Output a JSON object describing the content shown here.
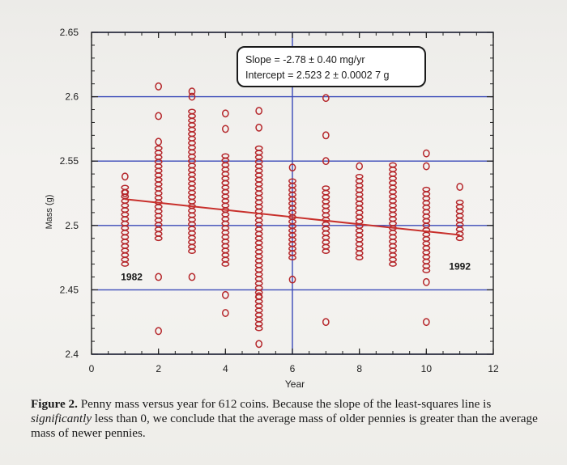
{
  "chart_data": {
    "type": "scatter",
    "xlabel": "Year",
    "ylabel": "Mass (g)",
    "xlim": [
      0,
      12
    ],
    "ylim": [
      2.4,
      2.65
    ],
    "xticks": [
      0,
      2,
      4,
      6,
      8,
      10,
      12
    ],
    "yticks": [
      2.4,
      2.45,
      2.5,
      2.55,
      2.6,
      2.65
    ],
    "xtick_labels": [
      "0",
      "2",
      "4",
      "6",
      "8",
      "10",
      "12"
    ],
    "ytick_labels": [
      "2.4",
      "2.45",
      "2.5",
      "2.55",
      "2.6",
      "2.65"
    ],
    "grid": true,
    "annotation": {
      "line1": "Slope = -2.78 ± 0.40 mg/yr",
      "line2": "Intercept = 2.523 2 ± 0.0002 7 g"
    },
    "labels": [
      {
        "text": "1982",
        "x": 1.2,
        "y": 2.4575
      },
      {
        "text": "1992",
        "x": 11.0,
        "y": 2.4655
      }
    ],
    "fit_line": {
      "slope": -0.00278,
      "intercept": 2.5232
    },
    "series": [
      {
        "x": 1,
        "y_min": 2.47,
        "y_max": 2.53,
        "outliers": [
          2.525,
          2.538
        ]
      },
      {
        "x": 2,
        "y_min": 2.49,
        "y_max": 2.56,
        "outliers": [
          2.418,
          2.46,
          2.565,
          2.585,
          2.608
        ]
      },
      {
        "x": 3,
        "y_min": 2.48,
        "y_max": 2.59,
        "outliers": [
          2.46,
          2.6,
          2.604
        ]
      },
      {
        "x": 4,
        "y_min": 2.47,
        "y_max": 2.555,
        "outliers": [
          2.432,
          2.446,
          2.575,
          2.587
        ]
      },
      {
        "x": 5,
        "y_min": 2.42,
        "y_max": 2.56,
        "outliers": [
          2.408,
          2.445,
          2.576,
          2.589
        ]
      },
      {
        "x": 6,
        "y_min": 2.475,
        "y_max": 2.535,
        "outliers": [
          2.458,
          2.545
        ]
      },
      {
        "x": 7,
        "y_min": 2.48,
        "y_max": 2.53,
        "outliers": [
          2.425,
          2.55,
          2.57,
          2.599
        ]
      },
      {
        "x": 8,
        "y_min": 2.475,
        "y_max": 2.54,
        "outliers": [
          2.546
        ]
      },
      {
        "x": 9,
        "y_min": 2.47,
        "y_max": 2.55,
        "outliers": []
      },
      {
        "x": 10,
        "y_min": 2.465,
        "y_max": 2.53,
        "outliers": [
          2.425,
          2.456,
          2.546,
          2.556
        ]
      },
      {
        "x": 11,
        "y_min": 2.49,
        "y_max": 2.52,
        "outliers": [
          2.53
        ]
      }
    ]
  },
  "caption": {
    "label": "Figure 2.",
    "text1": " Penny mass versus year for 612 coins. Because the slope of the least-squares line is ",
    "emph": "significantly",
    "text2": " less than 0, we conclude that the average mass of older pennies is greater than the average mass of newer pennies."
  },
  "colors": {
    "marker": "#b5262a",
    "fit_line": "#c8302c",
    "grid": "#3a49b8",
    "axis": "#1f1f1f",
    "annotation_box": "#1a1a1a"
  }
}
